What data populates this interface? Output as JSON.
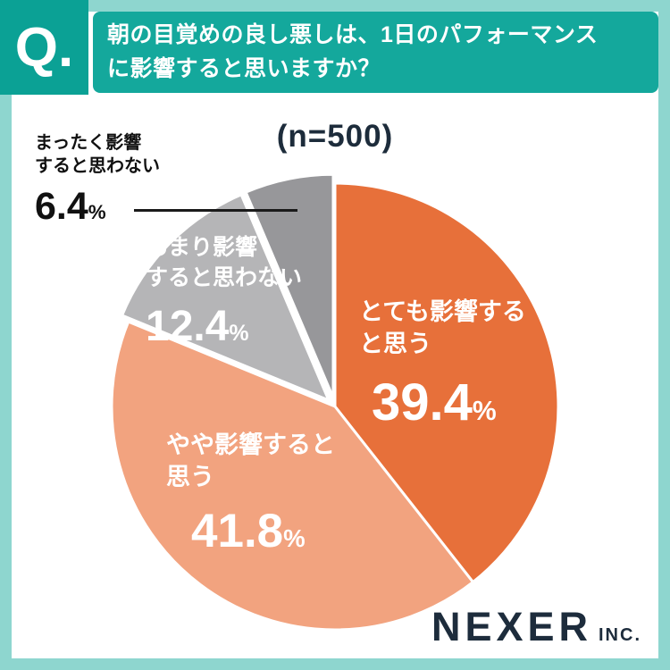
{
  "header": {
    "q_label": "Q.",
    "title_line1": "朝の目覚めの良し悪しは、1日のパフォーマンス",
    "title_line2": "に影響すると思いますか？"
  },
  "chart_data": {
    "type": "pie",
    "title": "朝の目覚めの良し悪しは、1日のパフォーマンスに影響すると思いますか？",
    "sample_label": "(n=500)",
    "sample_size": 500,
    "start_angle_deg": -90,
    "direction": "clockwise",
    "legend_position": "on-slice",
    "percent_sign": "%",
    "slices": [
      {
        "label": "とても影響すると思う",
        "label_lines": [
          "とても影響する",
          "と思う"
        ],
        "value": 39.4,
        "display": "39.4",
        "color": "#e7703a",
        "exploded": false
      },
      {
        "label": "やや影響すると思う",
        "label_lines": [
          "やや影響すると",
          "思う"
        ],
        "value": 41.8,
        "display": "41.8",
        "color": "#f2a37f",
        "exploded": false
      },
      {
        "label": "あまり影響すると思わない",
        "label_lines": [
          "あまり影響",
          "すると思わない"
        ],
        "value": 12.4,
        "display": "12.4",
        "color": "#b5b5b7",
        "exploded": true
      },
      {
        "label": "まったく影響すると思わない",
        "label_lines": [
          "まったく影響",
          "すると思わない"
        ],
        "value": 6.4,
        "display": "6.4",
        "color": "#97979a",
        "exploded": true
      }
    ]
  },
  "footer": {
    "brand": "NEXER",
    "brand_suffix": "INC."
  },
  "colors": {
    "frame": "#8ed6cf",
    "header_bg": "#14a89c",
    "q_tile_bg": "#0ba195",
    "text_dark": "#1d2c3b",
    "white": "#ffffff"
  }
}
